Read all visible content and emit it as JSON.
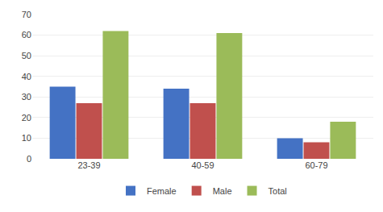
{
  "chart_data": {
    "type": "bar",
    "categories": [
      "23-39",
      "40-59",
      "60-79"
    ],
    "series": [
      {
        "name": "Female",
        "color": "#4472C4",
        "values": [
          35,
          34,
          10
        ]
      },
      {
        "name": "Male",
        "color": "#C0504D",
        "values": [
          27,
          27,
          8
        ]
      },
      {
        "name": "Total",
        "color": "#9BBB59",
        "values": [
          62,
          61,
          18
        ]
      }
    ],
    "ylim": [
      0,
      70
    ],
    "yticks": [
      0,
      10,
      20,
      30,
      40,
      50,
      60,
      70
    ],
    "grid": true,
    "legend": "bottom"
  }
}
